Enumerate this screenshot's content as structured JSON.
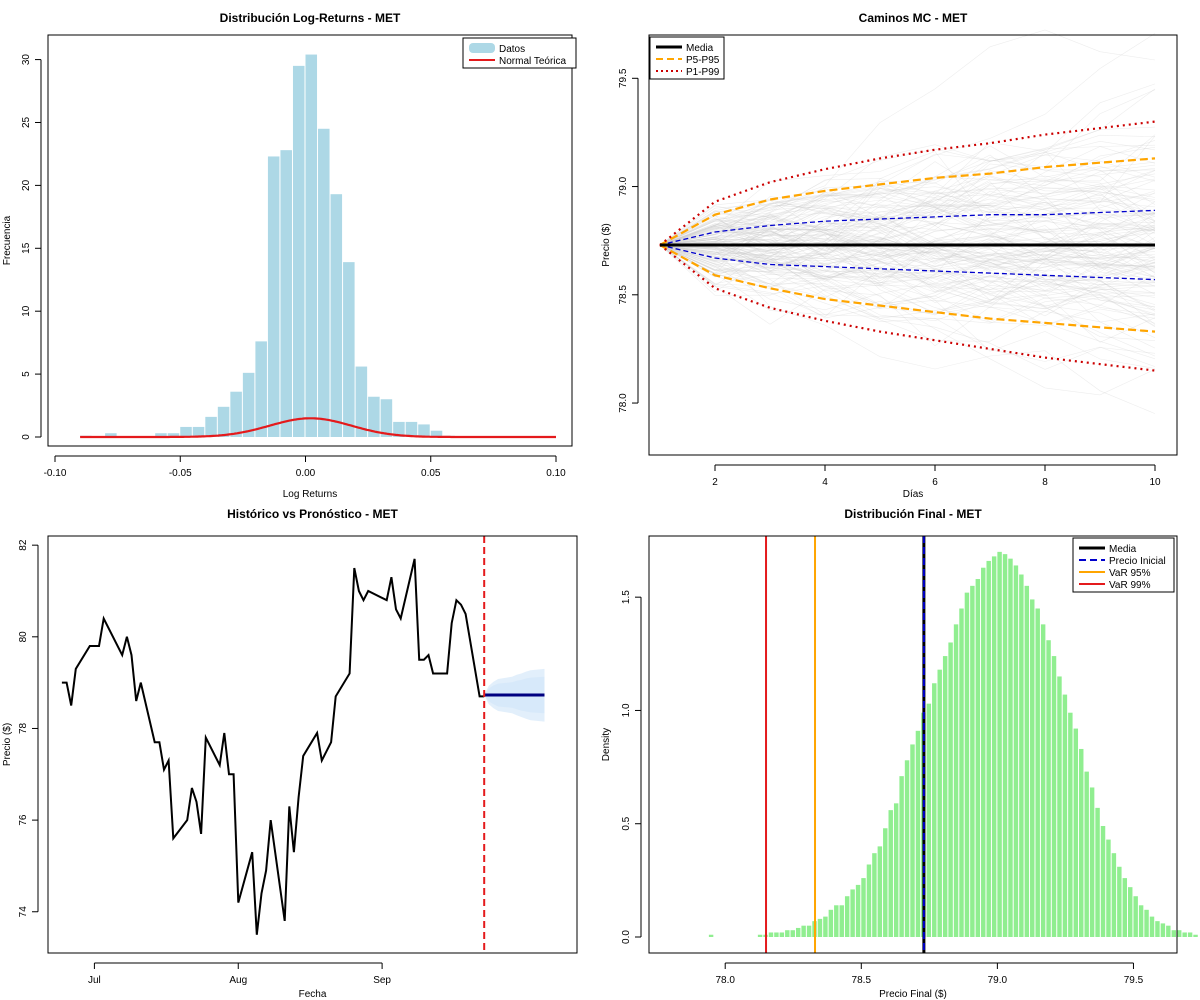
{
  "chart_data": [
    {
      "type": "histogram",
      "title": "Distribución Log-Returns - MET",
      "xlabel": "Log Returns",
      "ylabel": "Frecuencia",
      "xlim": [
        -0.1,
        0.1
      ],
      "ylim": [
        0,
        31
      ],
      "xticks": [
        -0.1,
        -0.05,
        0.0,
        0.05,
        0.1
      ],
      "xtick_labels": [
        "-0.10",
        "-0.05",
        "0.00",
        "0.05",
        "0.10"
      ],
      "yticks": [
        0,
        5,
        10,
        15,
        20,
        25,
        30
      ],
      "yticks_labels": [
        "0",
        "5",
        "10",
        "15",
        "20",
        "25",
        "30"
      ],
      "bin_width": 0.005,
      "bins_start": [
        -0.09,
        -0.085,
        -0.08,
        -0.075,
        -0.07,
        -0.065,
        -0.06,
        -0.055,
        -0.05,
        -0.045,
        -0.04,
        -0.035,
        -0.03,
        -0.025,
        -0.02,
        -0.015,
        -0.01,
        -0.005,
        0.0,
        0.005,
        0.01,
        0.015,
        0.02,
        0.025,
        0.03,
        0.035,
        0.04,
        0.045,
        0.05,
        0.055
      ],
      "frequencies": [
        0.1,
        0.0,
        0.3,
        0.0,
        0.0,
        0.0,
        0.3,
        0.3,
        0.8,
        0.8,
        1.6,
        2.4,
        3.6,
        5.1,
        7.6,
        22.3,
        22.8,
        29.5,
        30.4,
        24.5,
        19.3,
        13.9,
        5.6,
        3.2,
        3.0,
        1.2,
        1.2,
        1.0,
        0.5,
        0.1
      ],
      "curve_mu": 0.002,
      "curve_sigma": 0.0163,
      "curve_xrange": [
        -0.09,
        0.1
      ],
      "bar_color": "#add8e6",
      "curve_color": "#e41a1c",
      "legend": {
        "position": "top-right",
        "entries": [
          {
            "label": "Datos",
            "color": "#add8e6"
          },
          {
            "label": "Normal Teórica",
            "color": "#e41a1c"
          }
        ]
      }
    },
    {
      "type": "line",
      "title": "Caminos MC - MET",
      "xlabel": "Días",
      "ylabel": "Precio ($)",
      "xlim": [
        0.8,
        10.4
      ],
      "ylim": [
        77.76,
        79.7
      ],
      "xticks": [
        2,
        4,
        6,
        8,
        10
      ],
      "xtick_labels": [
        "2",
        "4",
        "6",
        "8",
        "10"
      ],
      "yticks": [
        78.0,
        78.5,
        79.0,
        79.5
      ],
      "yticks_labels": [
        "78.0",
        "78.5",
        "79.0",
        "79.5"
      ],
      "x": [
        1,
        2,
        3,
        4,
        5,
        6,
        7,
        8,
        9,
        10
      ],
      "start_price": 78.73,
      "series": [
        {
          "name": "Media",
          "color": "#000000",
          "style": "solid",
          "values": [
            78.73,
            78.73,
            78.73,
            78.73,
            78.73,
            78.73,
            78.73,
            78.73,
            78.73,
            78.73
          ]
        },
        {
          "name": "P5-P95",
          "color": "#ffa500",
          "style": "dashed",
          "values": [
            78.73,
            78.87,
            78.94,
            78.98,
            79.01,
            79.04,
            79.06,
            79.09,
            79.11,
            79.13
          ]
        },
        {
          "name": "P5-P95",
          "color": "#ffa500",
          "style": "dashed",
          "values": [
            78.73,
            78.59,
            78.53,
            78.48,
            78.45,
            78.42,
            78.39,
            78.37,
            78.35,
            78.33
          ]
        },
        {
          "name": "P1-P99",
          "color": "#cc0000",
          "style": "dotted",
          "values": [
            78.73,
            78.93,
            79.02,
            79.08,
            79.13,
            79.17,
            79.2,
            79.24,
            79.27,
            79.3
          ]
        },
        {
          "name": "P1-P99",
          "color": "#cc0000",
          "style": "dotted",
          "values": [
            78.73,
            78.53,
            78.44,
            78.38,
            78.33,
            78.29,
            78.25,
            78.21,
            78.18,
            78.15
          ]
        },
        {
          "name": "",
          "color": "#0000cc",
          "style": "dashed",
          "values": [
            78.73,
            78.79,
            78.82,
            78.84,
            78.85,
            78.86,
            78.87,
            78.87,
            78.88,
            78.89
          ]
        },
        {
          "name": "",
          "color": "#0000cc",
          "style": "dashed",
          "values": [
            78.73,
            78.67,
            78.64,
            78.63,
            78.62,
            78.61,
            78.6,
            78.59,
            78.58,
            78.57
          ]
        }
      ],
      "paths_band": {
        "count": 150,
        "color": "#cccccc",
        "daily_sigma": 0.1
      },
      "legend": {
        "position": "top-left",
        "entries": [
          {
            "label": "Media",
            "color": "#000000",
            "style": "solid"
          },
          {
            "label": "P5-P95",
            "color": "#ffa500",
            "style": "dashed"
          },
          {
            "label": "P1-P99",
            "color": "#cc0000",
            "style": "dotted"
          }
        ]
      }
    },
    {
      "type": "line",
      "title": "Histórico vs Pronóstico - MET",
      "xlabel": "Fecha",
      "ylabel": "Precio ($)",
      "xlim": [
        "2025-06-21",
        "2025-10-13"
      ],
      "ylim": [
        73.1,
        82.2
      ],
      "xticks": [
        "2025-07-01",
        "2025-08-01",
        "2025-09-01"
      ],
      "xtick_labels": [
        "Jul",
        "Aug",
        "Sep"
      ],
      "yticks": [
        74,
        76,
        78,
        80,
        82
      ],
      "yticks_labels": [
        "74",
        "76",
        "78",
        "80",
        "82"
      ],
      "historical": {
        "color": "#000000",
        "dates": [
          "2025-06-24",
          "2025-06-25",
          "2025-06-26",
          "2025-06-27",
          "2025-06-30",
          "2025-07-01",
          "2025-07-02",
          "2025-07-03",
          "2025-07-07",
          "2025-07-08",
          "2025-07-09",
          "2025-07-10",
          "2025-07-11",
          "2025-07-14",
          "2025-07-15",
          "2025-07-16",
          "2025-07-17",
          "2025-07-18",
          "2025-07-21",
          "2025-07-22",
          "2025-07-23",
          "2025-07-24",
          "2025-07-25",
          "2025-07-28",
          "2025-07-29",
          "2025-07-30",
          "2025-07-31",
          "2025-08-01",
          "2025-08-04",
          "2025-08-05",
          "2025-08-06",
          "2025-08-07",
          "2025-08-08",
          "2025-08-11",
          "2025-08-12",
          "2025-08-13",
          "2025-08-14",
          "2025-08-15",
          "2025-08-18",
          "2025-08-19",
          "2025-08-20",
          "2025-08-21",
          "2025-08-22",
          "2025-08-25",
          "2025-08-26",
          "2025-08-27",
          "2025-08-28",
          "2025-08-29",
          "2025-09-02",
          "2025-09-03",
          "2025-09-04",
          "2025-09-05",
          "2025-09-08",
          "2025-09-09",
          "2025-09-10",
          "2025-09-11",
          "2025-09-12",
          "2025-09-15",
          "2025-09-16",
          "2025-09-17",
          "2025-09-18",
          "2025-09-19",
          "2025-09-22",
          "2025-09-23"
        ],
        "values": [
          79.0,
          79.0,
          78.5,
          79.3,
          79.8,
          79.8,
          79.8,
          80.4,
          79.6,
          80.0,
          79.6,
          78.6,
          79.0,
          77.7,
          77.7,
          77.1,
          77.3,
          75.6,
          76.0,
          76.7,
          76.4,
          75.7,
          77.8,
          77.2,
          77.9,
          77.0,
          77.0,
          74.2,
          75.3,
          73.5,
          74.4,
          74.9,
          76.0,
          73.8,
          76.3,
          75.3,
          76.5,
          77.4,
          77.9,
          77.3,
          77.5,
          77.7,
          78.7,
          79.2,
          81.5,
          81.0,
          80.8,
          81.0,
          80.8,
          81.3,
          80.6,
          80.4,
          81.7,
          79.5,
          79.5,
          79.6,
          79.2,
          79.2,
          80.3,
          80.8,
          80.7,
          80.5,
          78.7,
          78.7
        ],
        "note_forecast_start": "2025-09-23"
      },
      "forecast": {
        "color": "#000080",
        "band_color": "#d6e8fa",
        "dates": [
          "2025-09-23",
          "2025-09-24",
          "2025-09-25",
          "2025-09-26",
          "2025-09-29",
          "2025-09-30",
          "2025-10-01",
          "2025-10-02",
          "2025-10-03",
          "2025-10-06"
        ],
        "mean": [
          78.73,
          78.73,
          78.73,
          78.73,
          78.73,
          78.73,
          78.73,
          78.73,
          78.73,
          78.73
        ],
        "p1": [
          78.73,
          78.53,
          78.44,
          78.38,
          78.33,
          78.29,
          78.25,
          78.21,
          78.18,
          78.15
        ],
        "p99": [
          78.73,
          78.93,
          79.02,
          79.08,
          79.13,
          79.17,
          79.2,
          79.24,
          79.27,
          79.3
        ],
        "p5": [
          78.73,
          78.59,
          78.53,
          78.48,
          78.45,
          78.42,
          78.39,
          78.37,
          78.35,
          78.33
        ],
        "p95": [
          78.73,
          78.87,
          78.94,
          78.98,
          79.01,
          79.04,
          79.06,
          79.09,
          79.11,
          79.13
        ]
      },
      "vline": {
        "date": "2025-09-23",
        "color": "#e41a1c",
        "style": "dashed"
      }
    },
    {
      "type": "histogram",
      "title": "Distribución Final - MET",
      "xlabel": "Precio Final ($)",
      "ylabel": "Density",
      "xlim": [
        77.72,
        79.66
      ],
      "ylim": [
        0,
        1.77
      ],
      "xticks": [
        78.0,
        78.5,
        79.0,
        79.5
      ],
      "xtick_labels": [
        "78.0",
        "78.5",
        "79.0",
        "79.5"
      ],
      "yticks": [
        0.0,
        0.5,
        1.0,
        1.5
      ],
      "yticks_labels": [
        "0.0",
        "0.5",
        "1.0",
        "1.5"
      ],
      "bar_color": "#90ee90",
      "bin_width": 0.02,
      "densities": [
        0.0,
        0.0,
        0.0,
        0.0,
        0.0,
        0.0,
        0.0,
        0.0,
        0.0,
        0.0,
        0.0,
        0.01,
        0.0,
        0.0,
        0.0,
        0.0,
        0.0,
        0.0,
        0.0,
        0.0,
        0.01,
        0.01,
        0.02,
        0.02,
        0.02,
        0.03,
        0.03,
        0.04,
        0.05,
        0.05,
        0.07,
        0.08,
        0.09,
        0.12,
        0.14,
        0.14,
        0.18,
        0.21,
        0.23,
        0.26,
        0.32,
        0.37,
        0.4,
        0.48,
        0.56,
        0.59,
        0.71,
        0.78,
        0.85,
        0.91,
        0.99,
        1.03,
        1.12,
        1.18,
        1.24,
        1.3,
        1.38,
        1.45,
        1.52,
        1.55,
        1.58,
        1.63,
        1.66,
        1.68,
        1.7,
        1.69,
        1.67,
        1.64,
        1.6,
        1.55,
        1.49,
        1.45,
        1.38,
        1.31,
        1.24,
        1.15,
        1.07,
        0.99,
        0.92,
        0.83,
        0.73,
        0.66,
        0.57,
        0.49,
        0.43,
        0.37,
        0.31,
        0.26,
        0.22,
        0.18,
        0.14,
        0.12,
        0.09,
        0.07,
        0.06,
        0.05,
        0.03,
        0.03,
        0.02,
        0.02,
        0.01
      ],
      "densities_start": 77.72,
      "vlines": [
        {
          "name": "Media",
          "value": 78.73,
          "color": "#000000",
          "style": "solid",
          "width": 3
        },
        {
          "name": "Precio Inicial",
          "value": 78.73,
          "color": "#0000cc",
          "style": "dashed",
          "width": 2
        },
        {
          "name": "VaR 95%",
          "value": 78.33,
          "color": "#ffa500",
          "style": "solid",
          "width": 2
        },
        {
          "name": "VaR 99%",
          "value": 78.15,
          "color": "#e41a1c",
          "style": "solid",
          "width": 2
        }
      ],
      "legend": {
        "position": "top-right",
        "entries": [
          {
            "label": "Media",
            "color": "#000000",
            "style": "solid"
          },
          {
            "label": "Precio Inicial",
            "color": "#0000cc",
            "style": "dashed"
          },
          {
            "label": "VaR 95%",
            "color": "#ffa500",
            "style": "solid"
          },
          {
            "label": "VaR 99%",
            "color": "#e41a1c",
            "style": "solid"
          }
        ]
      }
    }
  ]
}
